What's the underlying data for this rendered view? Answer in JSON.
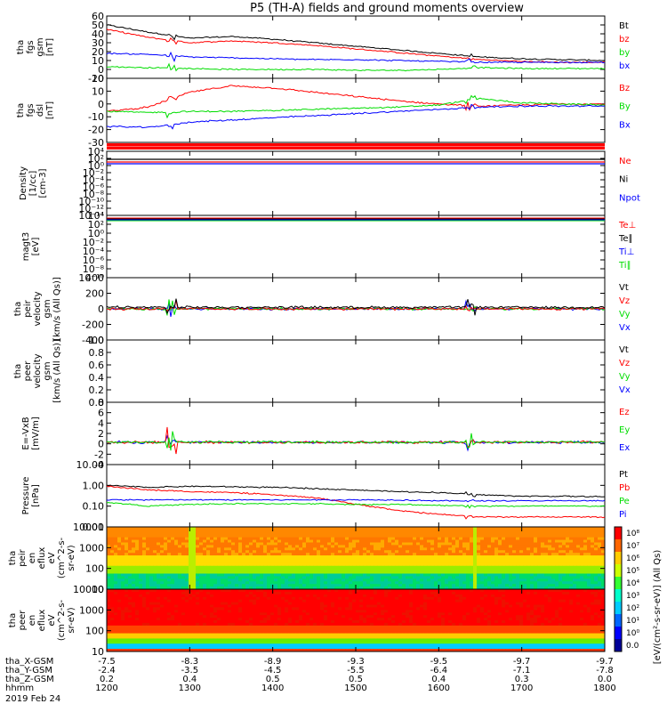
{
  "title": "P5 (TH-A) fields and ground moments overview",
  "colors": {
    "black": "#000000",
    "red": "#ff0000",
    "green": "#00dd00",
    "blue": "#0000ff",
    "bar_red": "#ff0000"
  },
  "panels": [
    {
      "id": "fgs-gsm",
      "ylabel": [
        "tha",
        "fgs",
        "gsm",
        "[nT]"
      ],
      "yticks": [
        "60",
        "50",
        "40",
        "30",
        "20",
        "10",
        "0",
        "-10"
      ],
      "legend": [
        {
          "text": "Bt",
          "color": "#000000"
        },
        {
          "text": "bz",
          "color": "#ff0000"
        },
        {
          "text": "by",
          "color": "#00dd00"
        },
        {
          "text": "bx",
          "color": "#0000ff"
        }
      ]
    },
    {
      "id": "fgs-dsl",
      "ylabel": [
        "tha",
        "fgs",
        "dsl",
        "[nT]"
      ],
      "yticks": [
        "20",
        "10",
        "0",
        "-10",
        "-20",
        "-30"
      ],
      "legend": [
        {
          "text": "Bz",
          "color": "#ff0000"
        },
        {
          "text": "By",
          "color": "#00dd00"
        },
        {
          "text": "Bx",
          "color": "#0000ff"
        }
      ]
    },
    {
      "id": "density",
      "ylabel": [
        "Density",
        "[1/cc]",
        "[cm-3]"
      ],
      "yticks": [
        "10⁴",
        "10²",
        "10⁰",
        "10⁻²",
        "10⁻⁴",
        "10⁻⁶",
        "10⁻⁸",
        "10⁻¹⁰",
        "10⁻¹²",
        "10⁻¹⁴"
      ],
      "legend": [
        {
          "text": "Ne",
          "color": "#ff0000"
        },
        {
          "text": "Ni",
          "color": "#000000"
        },
        {
          "text": "Npot",
          "color": "#0000ff"
        }
      ]
    },
    {
      "id": "temperature",
      "ylabel": [
        "magt3",
        "[eV]"
      ],
      "yticks": [
        "10⁴",
        "10²",
        "10⁰",
        "10⁻²",
        "10⁻⁴",
        "10⁻⁶",
        "10⁻⁸",
        "10⁻¹⁰"
      ],
      "legend": [
        {
          "text": "Te⊥",
          "color": "#ff0000"
        },
        {
          "text": "Te∥",
          "color": "#000000"
        },
        {
          "text": "Ti⊥",
          "color": "#0000ff"
        },
        {
          "text": "Ti∥",
          "color": "#00dd00"
        }
      ]
    },
    {
      "id": "peir-velocity",
      "ylabel": [
        "tha",
        "peir",
        "velocity",
        "gsm",
        "[km/s (All Qs)]"
      ],
      "yticks": [
        "400",
        "200",
        "0",
        "-200",
        "-400"
      ],
      "legend": [
        {
          "text": "Vt",
          "color": "#000000"
        },
        {
          "text": "Vz",
          "color": "#ff0000"
        },
        {
          "text": "Vy",
          "color": "#00dd00"
        },
        {
          "text": "Vx",
          "color": "#0000ff"
        }
      ]
    },
    {
      "id": "peer-velocity",
      "ylabel": [
        "tha",
        "peer",
        "velocity",
        "gsm",
        "[km/s (All Qs)]"
      ],
      "yticks": [
        "1.0",
        "0.8",
        "0.6",
        "0.4",
        "0.2",
        "0.0"
      ],
      "legend": [
        {
          "text": "Vt",
          "color": "#000000"
        },
        {
          "text": "Vz",
          "color": "#ff0000"
        },
        {
          "text": "Vy",
          "color": "#00dd00"
        },
        {
          "text": "Vx",
          "color": "#0000ff"
        }
      ]
    },
    {
      "id": "efield",
      "ylabel": [
        "E=-VxB",
        "[mV/m]"
      ],
      "yticks": [
        "8",
        "6",
        "4",
        "2",
        "0",
        "-2",
        "-4"
      ],
      "legend": [
        {
          "text": "Ez",
          "color": "#ff0000"
        },
        {
          "text": "Ey",
          "color": "#00dd00"
        },
        {
          "text": "Ex",
          "color": "#0000ff"
        }
      ]
    },
    {
      "id": "pressure",
      "ylabel": [
        "Pressure",
        "[nPa]"
      ],
      "yticks": [
        "10.00",
        "1.00",
        "0.10",
        "0.01"
      ],
      "legend": [
        {
          "text": "Pt",
          "color": "#000000"
        },
        {
          "text": "Pb",
          "color": "#ff0000"
        },
        {
          "text": "Pe",
          "color": "#00dd00"
        },
        {
          "text": "Pi",
          "color": "#0000ff"
        }
      ]
    },
    {
      "id": "peir-spec",
      "ylabel": [
        "tha",
        "peir",
        "en",
        "eflux",
        "eV",
        "(cm^2-s-",
        "sr-eV)"
      ],
      "yticks": [
        "10000",
        "1000",
        "100",
        "10"
      ],
      "legend": []
    },
    {
      "id": "peer-spec",
      "ylabel": [
        "tha",
        "peer",
        "en",
        "eflux",
        "eV",
        "(cm^2-s-",
        "sr-eV)"
      ],
      "yticks": [
        "10000",
        "1000",
        "100",
        "10"
      ],
      "legend": []
    }
  ],
  "colorbar": {
    "ticks": [
      "10⁸",
      "10⁷",
      "10⁶",
      "10⁵",
      "10⁴",
      "10³",
      "10²",
      "10¹",
      "10⁰",
      "0.0"
    ],
    "label": "[eV/(cm²-s-sr-eV)] (All Qs)"
  },
  "xaxis": {
    "rows": [
      {
        "label": "tha_X-GSM",
        "values": [
          "-7.5",
          "-8.3",
          "-8.9",
          "-9.3",
          "-9.5",
          "-9.7",
          "-9.7"
        ]
      },
      {
        "label": "tha_Y-GSM",
        "values": [
          "-2.4",
          "-3.5",
          "-4.5",
          "-5.5",
          "-6.4",
          "-7.1",
          "-7.8"
        ]
      },
      {
        "label": "tha_Z-GSM",
        "values": [
          "0.2",
          "0.4",
          "0.5",
          "0.5",
          "0.4",
          "0.3",
          "0.0"
        ]
      },
      {
        "label": "hhmm",
        "values": [
          "1200",
          "1300",
          "1400",
          "1500",
          "1600",
          "1700",
          "1800"
        ]
      }
    ],
    "date": "2019 Feb 24"
  },
  "chart_data": {
    "type": "line",
    "title": "P5 (TH-A) fields and ground moments overview",
    "x": [
      "1200",
      "1230",
      "1300",
      "1330",
      "1400",
      "1430",
      "1500",
      "1530",
      "1600",
      "1630",
      "1700",
      "1730",
      "1800"
    ],
    "panels": [
      {
        "name": "fgs-gsm",
        "ylim": [
          -10,
          60
        ],
        "series": [
          {
            "name": "Bt",
            "values": [
              50,
              42,
              35,
              37,
              34,
              30,
              26,
              22,
              18,
              14,
              12,
              11,
              10
            ]
          },
          {
            "name": "bz",
            "values": [
              45,
              36,
              30,
              32,
              30,
              27,
              23,
              19,
              15,
              11,
              9,
              8,
              8
            ]
          },
          {
            "name": "by",
            "values": [
              3,
              2,
              1,
              0,
              0,
              0,
              -1,
              -1,
              0,
              2,
              1,
              1,
              1
            ]
          },
          {
            "name": "bx",
            "values": [
              18,
              17,
              14,
              13,
              12,
              11,
              11,
              10,
              9,
              8,
              8,
              8,
              8
            ]
          }
        ]
      },
      {
        "name": "fgs-dsl",
        "ylim": [
          -35,
          25
        ],
        "series": [
          {
            "name": "Bz",
            "values": [
              -6,
              -2,
              12,
              18,
              16,
              12,
              8,
              4,
              1,
              -1,
              0,
              1,
              1
            ]
          },
          {
            "name": "By",
            "values": [
              -6,
              -7,
              -6,
              -6,
              -5,
              -4,
              -3,
              -2,
              0,
              6,
              2,
              1,
              0
            ]
          },
          {
            "name": "Bx",
            "values": [
              -20,
              -21,
              -16,
              -14,
              -12,
              -10,
              -8,
              -6,
              -4,
              -2,
              -1,
              -1,
              -1
            ]
          }
        ]
      },
      {
        "name": "pressure",
        "ylim": [
          0.01,
          10
        ],
        "series": [
          {
            "name": "Pt",
            "values": [
              1.0,
              0.8,
              0.9,
              0.85,
              0.8,
              0.7,
              0.6,
              0.5,
              0.45,
              0.35,
              0.3,
              0.3,
              0.28
            ]
          },
          {
            "name": "Pb",
            "values": [
              0.9,
              0.6,
              0.5,
              0.45,
              0.35,
              0.25,
              0.12,
              0.06,
              0.04,
              0.03,
              0.03,
              0.03,
              0.03
            ]
          },
          {
            "name": "Pe",
            "values": [
              0.15,
              0.1,
              0.12,
              0.13,
              0.13,
              0.13,
              0.12,
              0.12,
              0.11,
              0.1,
              0.1,
              0.1,
              0.1
            ]
          },
          {
            "name": "Pi",
            "values": [
              0.2,
              0.2,
              0.2,
              0.2,
              0.2,
              0.2,
              0.2,
              0.2,
              0.18,
              0.18,
              0.18,
              0.18,
              0.18
            ]
          }
        ]
      }
    ]
  }
}
